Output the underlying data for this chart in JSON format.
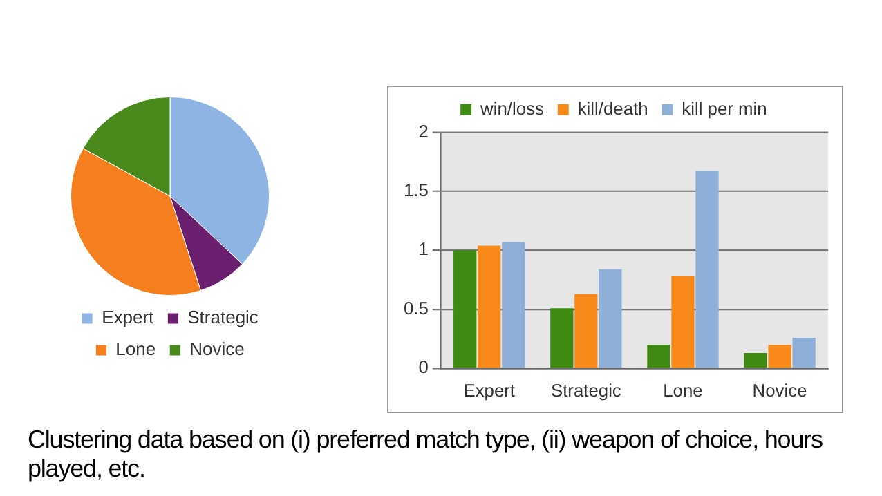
{
  "chart_data": [
    {
      "type": "pie",
      "categories": [
        "Expert",
        "Strategic",
        "Lone",
        "Novice"
      ],
      "values": [
        37,
        8,
        38,
        17
      ],
      "colors": [
        "#8eb4e3",
        "#6b1f6f",
        "#f57f1e",
        "#4a8a1c"
      ],
      "legend": "bottom",
      "annotations": [
        "Clustering data based on (i) preferred match type, (ii) weapon of choice, hours played, etc."
      ]
    },
    {
      "type": "bar",
      "categories": [
        "Expert",
        "Strategic",
        "Lone",
        "Novice"
      ],
      "series": [
        {
          "name": "win/loss",
          "color": "#3f8a12",
          "values": [
            1.0,
            0.51,
            0.2,
            0.13
          ]
        },
        {
          "name": "kill/death",
          "color": "#f98a1a",
          "values": [
            1.04,
            0.63,
            0.78,
            0.2
          ]
        },
        {
          "name": "kill per min",
          "color": "#8eb0d8",
          "values": [
            1.07,
            0.84,
            1.67,
            0.26
          ]
        }
      ],
      "ylim": [
        0,
        2
      ],
      "yticks": [
        0,
        0.5,
        1,
        1.5,
        2
      ],
      "grid": "y",
      "legend": "top"
    }
  ]
}
